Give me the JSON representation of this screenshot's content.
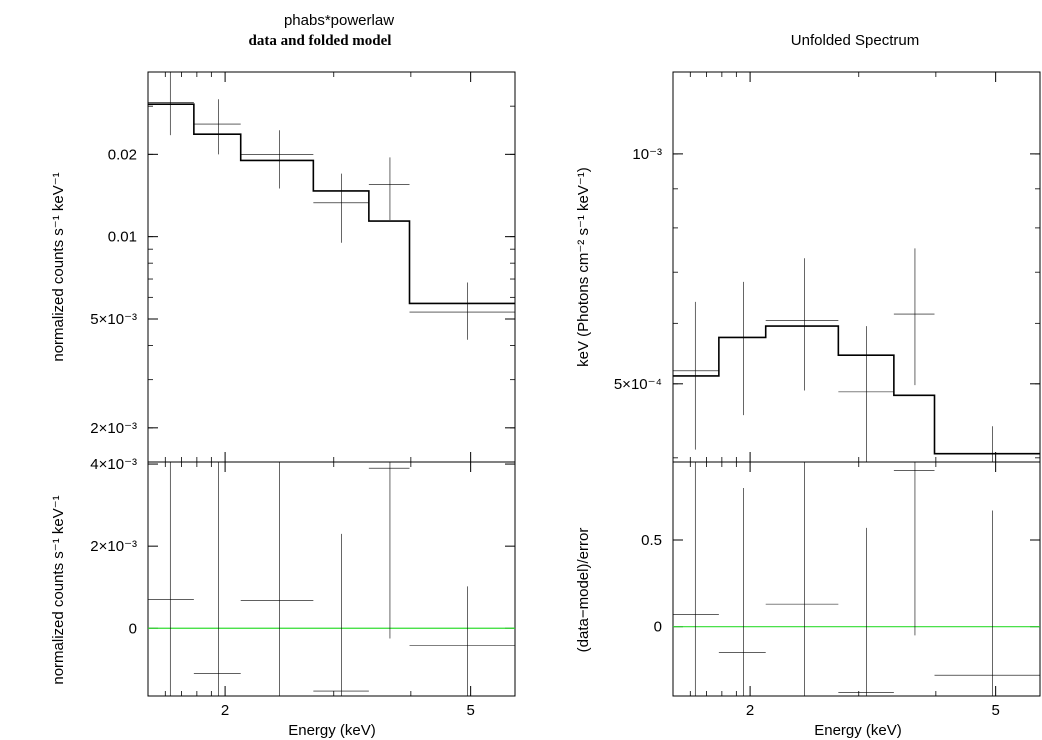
{
  "left_title": "phabs*powerlaw",
  "left_subtitle": "data and folded model",
  "right_title": "Unfolded Spectrum",
  "xlabel": "Energy (keV)",
  "chart_data": [
    {
      "type": "line",
      "name": "data-and-folded-model",
      "xscale": "log",
      "yscale": "log",
      "xlim": [
        1.5,
        5.9
      ],
      "ylim": [
        0.0015,
        0.04
      ],
      "ylabel": "normalized counts s⁻¹ keV⁻¹",
      "yticks": [
        {
          "value": 0.02,
          "label": "0.02"
        },
        {
          "value": 0.01,
          "label": "0.01"
        },
        {
          "value": 0.005,
          "label": "5×10⁻³"
        },
        {
          "value": 0.002,
          "label": "2×10⁻³"
        }
      ],
      "xticks": [
        {
          "value": 2,
          "label": "2"
        },
        {
          "value": 5,
          "label": "5"
        }
      ],
      "data": [
        {
          "x": 1.63,
          "xlo": 1.5,
          "xhi": 1.78,
          "y": 0.031,
          "ylo": 0.0235,
          "yhi": 0.04
        },
        {
          "x": 1.95,
          "xlo": 1.78,
          "xhi": 2.12,
          "y": 0.0258,
          "ylo": 0.02,
          "yhi": 0.0318
        },
        {
          "x": 2.45,
          "xlo": 2.12,
          "xhi": 2.78,
          "y": 0.02,
          "ylo": 0.015,
          "yhi": 0.0245
        },
        {
          "x": 3.09,
          "xlo": 2.78,
          "xhi": 3.42,
          "y": 0.0133,
          "ylo": 0.0095,
          "yhi": 0.017
        },
        {
          "x": 3.7,
          "xlo": 3.42,
          "xhi": 3.98,
          "y": 0.0155,
          "ylo": 0.0115,
          "yhi": 0.0195
        },
        {
          "x": 4.94,
          "xlo": 3.98,
          "xhi": 5.9,
          "y": 0.0053,
          "ylo": 0.0042,
          "yhi": 0.0068
        }
      ],
      "model": [
        {
          "xlo": 1.5,
          "xhi": 1.78,
          "y": 0.0305
        },
        {
          "xlo": 1.78,
          "xhi": 2.12,
          "y": 0.0237
        },
        {
          "xlo": 2.12,
          "xhi": 2.78,
          "y": 0.019
        },
        {
          "xlo": 2.78,
          "xhi": 3.42,
          "y": 0.0147
        },
        {
          "xlo": 3.42,
          "xhi": 3.98,
          "y": 0.0114
        },
        {
          "xlo": 3.98,
          "xhi": 5.9,
          "y": 0.0057
        }
      ]
    },
    {
      "type": "line",
      "name": "data-and-folded-model-residuals",
      "xscale": "log",
      "yscale": "linear",
      "xlim": [
        1.5,
        5.9
      ],
      "ylim": [
        -0.00165,
        0.00405
      ],
      "ylabel": "normalized counts s⁻¹ keV⁻¹",
      "yticks": [
        {
          "value": 0.004,
          "label": "4×10⁻³"
        },
        {
          "value": 0.002,
          "label": "2×10⁻³"
        },
        {
          "value": 0,
          "label": "0"
        }
      ],
      "xticks": [
        {
          "value": 2,
          "label": "2"
        },
        {
          "value": 5,
          "label": "5"
        }
      ],
      "zero_line_color": "#33dd33",
      "data": [
        {
          "x": 1.63,
          "xlo": 1.5,
          "xhi": 1.78,
          "y": 0.0007,
          "ylo": -0.00165,
          "yhi": 0.00405
        },
        {
          "x": 1.95,
          "xlo": 1.78,
          "xhi": 2.12,
          "y": -0.0011,
          "ylo": -0.00165,
          "yhi": 0.00405
        },
        {
          "x": 2.45,
          "xlo": 2.12,
          "xhi": 2.78,
          "y": 0.00068,
          "ylo": -0.00165,
          "yhi": 0.00405
        },
        {
          "x": 3.09,
          "xlo": 2.78,
          "xhi": 3.42,
          "y": -0.00153,
          "ylo": -0.00165,
          "yhi": 0.0023
        },
        {
          "x": 3.7,
          "xlo": 3.42,
          "xhi": 3.98,
          "y": 0.0039,
          "ylo": -0.00025,
          "yhi": 0.00405
        },
        {
          "x": 4.94,
          "xlo": 3.98,
          "xhi": 5.9,
          "y": -0.00042,
          "ylo": -0.00165,
          "yhi": 0.00102
        }
      ]
    },
    {
      "type": "line",
      "name": "unfolded-spectrum",
      "xscale": "log",
      "yscale": "log",
      "xlim": [
        1.5,
        5.9
      ],
      "ylim": [
        0.000395,
        0.00128
      ],
      "ylabel": "keV (Photons cm⁻² s⁻¹ keV⁻¹)",
      "yticks": [
        {
          "value": 0.001,
          "label": "10⁻³"
        },
        {
          "value": 0.0005,
          "label": "5×10⁻⁴"
        }
      ],
      "xticks": [
        {
          "value": 2,
          "label": "2"
        },
        {
          "value": 5,
          "label": "5"
        }
      ],
      "data": [
        {
          "x": 1.63,
          "xlo": 1.5,
          "xhi": 1.78,
          "y": 0.00052,
          "ylo": 0.00041,
          "yhi": 0.00064
        },
        {
          "x": 1.95,
          "xlo": 1.78,
          "xhi": 2.12,
          "y": 0.000575,
          "ylo": 0.000455,
          "yhi": 0.00068
        },
        {
          "x": 2.45,
          "xlo": 2.12,
          "xhi": 2.78,
          "y": 0.000605,
          "ylo": 0.00049,
          "yhi": 0.00073
        },
        {
          "x": 3.09,
          "xlo": 2.78,
          "xhi": 3.42,
          "y": 0.000488,
          "ylo": 0.000395,
          "yhi": 0.000595
        },
        {
          "x": 3.7,
          "xlo": 3.42,
          "xhi": 3.98,
          "y": 0.000617,
          "ylo": 0.000498,
          "yhi": 0.000752
        },
        {
          "x": 4.94,
          "xlo": 3.98,
          "xhi": 5.9,
          "y": 0.000395,
          "ylo": 0.000395,
          "yhi": 0.00044
        }
      ],
      "model": [
        {
          "xlo": 1.5,
          "xhi": 1.78,
          "y": 0.000512
        },
        {
          "xlo": 1.78,
          "xhi": 2.12,
          "y": 0.000575
        },
        {
          "xlo": 2.12,
          "xhi": 2.78,
          "y": 0.000595
        },
        {
          "xlo": 2.78,
          "xhi": 3.42,
          "y": 0.000545
        },
        {
          "xlo": 3.42,
          "xhi": 3.98,
          "y": 0.000483
        },
        {
          "xlo": 3.98,
          "xhi": 5.9,
          "y": 0.000405
        }
      ]
    },
    {
      "type": "line",
      "name": "unfolded-spectrum-residuals",
      "xscale": "log",
      "yscale": "linear",
      "xlim": [
        1.5,
        5.9
      ],
      "ylim": [
        -0.4,
        0.95
      ],
      "ylabel": "(data−model)/error",
      "yticks": [
        {
          "value": 0.5,
          "label": "0.5"
        },
        {
          "value": 0,
          "label": "0"
        }
      ],
      "xticks": [
        {
          "value": 2,
          "label": "2"
        },
        {
          "value": 5,
          "label": "5"
        }
      ],
      "zero_line_color": "#33dd33",
      "data": [
        {
          "x": 1.63,
          "xlo": 1.5,
          "xhi": 1.78,
          "y": 0.07,
          "ylo": -0.4,
          "yhi": 0.95
        },
        {
          "x": 1.95,
          "xlo": 1.78,
          "xhi": 2.12,
          "y": -0.15,
          "ylo": -0.4,
          "yhi": 0.8
        },
        {
          "x": 2.45,
          "xlo": 2.12,
          "xhi": 2.78,
          "y": 0.13,
          "ylo": -0.4,
          "yhi": 0.95
        },
        {
          "x": 3.09,
          "xlo": 2.78,
          "xhi": 3.42,
          "y": -0.38,
          "ylo": -0.4,
          "yhi": 0.57
        },
        {
          "x": 3.7,
          "xlo": 3.42,
          "xhi": 3.98,
          "y": 0.9,
          "ylo": -0.05,
          "yhi": 0.95
        },
        {
          "x": 4.94,
          "xlo": 3.98,
          "xhi": 5.9,
          "y": -0.28,
          "ylo": -0.4,
          "yhi": 0.67
        }
      ]
    }
  ]
}
